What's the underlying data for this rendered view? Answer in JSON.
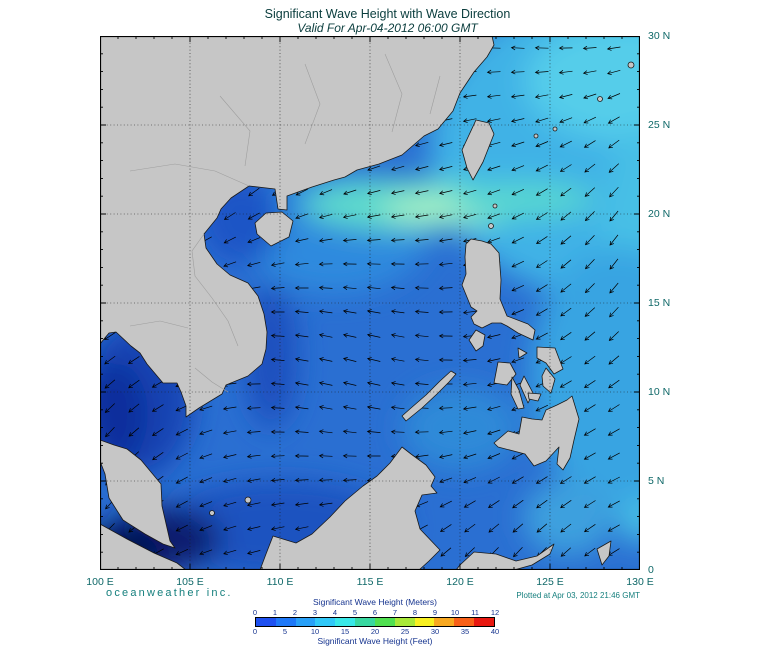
{
  "header": {
    "title": "Significant Wave Height with Wave Direction",
    "subtitle": "Valid For Apr-04-2012 06:00 GMT"
  },
  "axes": {
    "lon": [
      "100 E",
      "105 E",
      "110 E",
      "115 E",
      "120 E",
      "125 E",
      "130 E"
    ],
    "lat": [
      "30 N",
      "25 N",
      "20 N",
      "15 N",
      "10 N",
      "5 N",
      "0"
    ]
  },
  "footer": {
    "brand": "oceanweather inc.",
    "plotted": "Plotted at Apr 03, 2012 21:46 GMT"
  },
  "legend": {
    "meters_title": "Significant Wave Height (Meters)",
    "meters_ticks": [
      "0",
      "1",
      "2",
      "3",
      "4",
      "5",
      "6",
      "7",
      "8",
      "9",
      "10",
      "11",
      "12"
    ],
    "feet_title": "Significant Wave Height (Feet)",
    "feet_ticks": [
      "0",
      "5",
      "10",
      "15",
      "20",
      "25",
      "30",
      "35",
      "40"
    ],
    "colors": [
      "#1e50f0",
      "#1e78f8",
      "#28a0f8",
      "#30c8f8",
      "#38e8e8",
      "#38d8a0",
      "#50e050",
      "#a8e838",
      "#f8f020",
      "#f8a820",
      "#f86018",
      "#e81810"
    ]
  },
  "map": {
    "sea_base_color": "#2a6fd2",
    "land_color": "#c6c6c6"
  }
}
